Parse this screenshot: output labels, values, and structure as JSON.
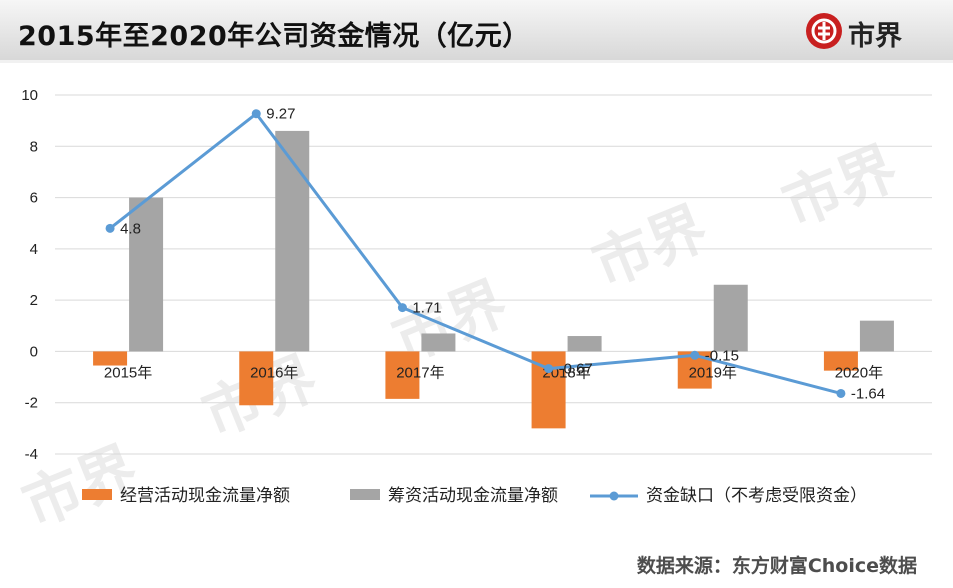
{
  "header": {
    "title": "2015年至2020年公司资金情况（亿元）",
    "brand_text": "市界"
  },
  "source_text": "数据来源：东方财富Choice数据",
  "watermark_text": "市界",
  "colors": {
    "operating": "#ed7d31",
    "financing": "#a5a5a5",
    "gap_line": "#5b9bd5",
    "brand": "#c82020"
  },
  "chart_data": {
    "type": "bar",
    "categories": [
      "2015年",
      "2016年",
      "2017年",
      "2018年",
      "2019年",
      "2020年"
    ],
    "ylim": [
      -4,
      10
    ],
    "yticks": [
      -4,
      -2,
      0,
      2,
      4,
      6,
      8,
      10
    ],
    "grid": true,
    "legend_position": "bottom",
    "series": [
      {
        "name": "经营活动现金流量净额",
        "type": "bar",
        "values": [
          -0.55,
          -2.1,
          -1.85,
          -3.0,
          -1.45,
          -0.75
        ]
      },
      {
        "name": "筹资活动现金流量净额",
        "type": "bar",
        "values": [
          6.0,
          8.6,
          0.7,
          0.6,
          2.6,
          1.2
        ]
      },
      {
        "name": "资金缺口（不考虑受限资金）",
        "type": "line",
        "values": [
          4.8,
          9.27,
          1.71,
          -0.67,
          -0.15,
          -1.64
        ],
        "labels": [
          "4.8",
          "9.27",
          "1.71",
          "-0.67",
          "-0.15",
          "-1.64"
        ]
      }
    ]
  }
}
